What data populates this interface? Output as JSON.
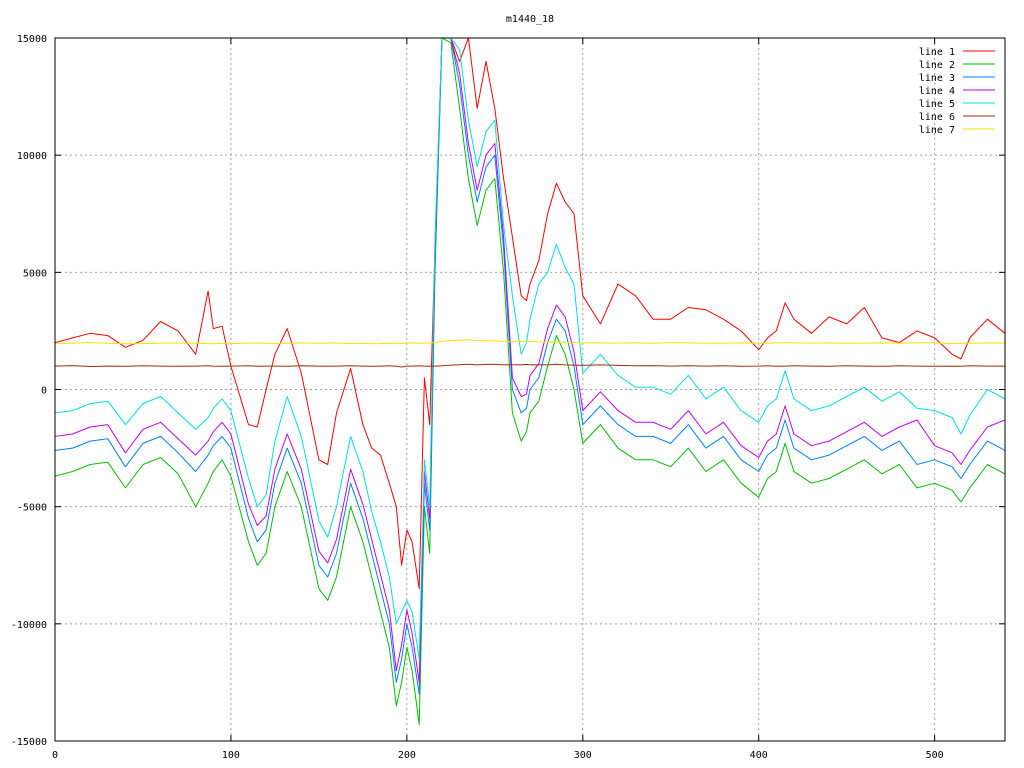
{
  "chart_data": {
    "type": "line",
    "title": "m1440_18",
    "xlabel": "",
    "ylabel": "",
    "xlim": [
      0,
      540
    ],
    "ylim": [
      -15000,
      15000
    ],
    "x_ticks": [
      0,
      100,
      200,
      300,
      400,
      500
    ],
    "y_ticks": [
      -15000,
      -10000,
      -5000,
      0,
      5000,
      10000,
      15000
    ],
    "x_tick_labels": [
      "0",
      "100",
      "200",
      "300",
      "400",
      "500"
    ],
    "y_tick_labels": [
      "-15000",
      "-10000",
      "-5000",
      "0",
      "5000",
      "10000",
      "15000"
    ],
    "grid": true,
    "legend_position": "top-right",
    "x": [
      0,
      10,
      20,
      30,
      40,
      50,
      60,
      70,
      80,
      87,
      90,
      95,
      100,
      110,
      115,
      120,
      125,
      132,
      140,
      150,
      155,
      160,
      168,
      175,
      180,
      185,
      190,
      194,
      197,
      200,
      203,
      207,
      210,
      213,
      216,
      220,
      225,
      230,
      235,
      240,
      245,
      250,
      255,
      260,
      265,
      268,
      270,
      275,
      280,
      285,
      290,
      295,
      300,
      310,
      320,
      330,
      340,
      350,
      360,
      370,
      380,
      390,
      400,
      405,
      410,
      415,
      420,
      430,
      440,
      450,
      460,
      470,
      480,
      490,
      500,
      510,
      515,
      520,
      530,
      540
    ],
    "series": [
      {
        "name": "line 1",
        "color": "#ff0000",
        "values": [
          2000,
          2200,
          2400,
          2300,
          1800,
          2100,
          2900,
          2500,
          1500,
          4200,
          2600,
          2700,
          1000,
          -1500,
          -1600,
          0,
          1500,
          2600,
          700,
          -3000,
          -3200,
          -1000,
          900,
          -1500,
          -2500,
          -2800,
          -4000,
          -5000,
          -7500,
          -6000,
          -6500,
          -8500,
          500,
          -1500,
          6000,
          15000,
          15000,
          14000,
          15000,
          12000,
          14000,
          12000,
          9000,
          6500,
          4000,
          3800,
          4500,
          5500,
          7500,
          8800,
          8000,
          7500,
          4000,
          2800,
          4500,
          4000,
          3000,
          3000,
          3500,
          3400,
          3000,
          2500,
          1700,
          2200,
          2500,
          3700,
          3000,
          2400,
          3100,
          2800,
          3500,
          2200,
          2000,
          2500,
          2200,
          1500,
          1300,
          2200,
          3000,
          2400
        ]
      },
      {
        "name": "line 2",
        "color": "#00c000",
        "values": [
          -3700,
          -3500,
          -3200,
          -3100,
          -4200,
          -3200,
          -2900,
          -3600,
          -5000,
          -4000,
          -3500,
          -3000,
          -3700,
          -6500,
          -7500,
          -7000,
          -5000,
          -3500,
          -5000,
          -8500,
          -9000,
          -8000,
          -5000,
          -6500,
          -8000,
          -9500,
          -11000,
          -13500,
          -12500,
          -11000,
          -12000,
          -14300,
          -5000,
          -7000,
          5000,
          15000,
          14800,
          12000,
          9000,
          7000,
          8500,
          9000,
          5000,
          -1000,
          -2200,
          -1800,
          -1000,
          -500,
          1000,
          2300,
          1500,
          0,
          -2300,
          -1500,
          -2500,
          -3000,
          -3000,
          -3300,
          -2500,
          -3500,
          -3000,
          -4000,
          -4600,
          -3800,
          -3500,
          -2300,
          -3500,
          -4000,
          -3800,
          -3400,
          -3000,
          -3600,
          -3200,
          -4200,
          -4000,
          -4300,
          -4800,
          -4200,
          -3200,
          -3600
        ]
      },
      {
        "name": "line 3",
        "color": "#0080ff",
        "values": [
          -2600,
          -2500,
          -2200,
          -2100,
          -3300,
          -2300,
          -2000,
          -2700,
          -3500,
          -2800,
          -2400,
          -2000,
          -2500,
          -5500,
          -6500,
          -6000,
          -4000,
          -2500,
          -4000,
          -7500,
          -8000,
          -7000,
          -4000,
          -5500,
          -7000,
          -8500,
          -10000,
          -12500,
          -11500,
          -10000,
          -11000,
          -13000,
          -4000,
          -6000,
          5500,
          15000,
          15000,
          13000,
          10000,
          8000,
          9500,
          10000,
          6000,
          0,
          -1000,
          -800,
          0,
          500,
          2000,
          3000,
          2500,
          1000,
          -1500,
          -700,
          -1500,
          -2000,
          -2000,
          -2300,
          -1500,
          -2500,
          -2000,
          -3000,
          -3500,
          -2800,
          -2500,
          -1300,
          -2500,
          -3000,
          -2800,
          -2400,
          -2000,
          -2600,
          -2200,
          -3200,
          -3000,
          -3300,
          -3800,
          -3200,
          -2200,
          -2600
        ]
      },
      {
        "name": "line 4",
        "color": "#c000ff",
        "values": [
          -2000,
          -1900,
          -1600,
          -1500,
          -2700,
          -1700,
          -1400,
          -2100,
          -2800,
          -2200,
          -1800,
          -1400,
          -1900,
          -4900,
          -5800,
          -5400,
          -3400,
          -1900,
          -3400,
          -6900,
          -7400,
          -6400,
          -3400,
          -4900,
          -6400,
          -7900,
          -9400,
          -12000,
          -10900,
          -9400,
          -10400,
          -12500,
          -3500,
          -5500,
          6000,
          15000,
          15000,
          13500,
          10500,
          8500,
          10000,
          10500,
          6500,
          500,
          -300,
          -200,
          600,
          1100,
          2600,
          3600,
          3100,
          1600,
          -900,
          -100,
          -900,
          -1400,
          -1400,
          -1700,
          -900,
          -1900,
          -1400,
          -2400,
          -2900,
          -2200,
          -1900,
          -700,
          -1900,
          -2400,
          -2200,
          -1800,
          -1400,
          -2000,
          -1600,
          -1300,
          -2400,
          -2700,
          -3200,
          -2600,
          -1600,
          -1300
        ]
      },
      {
        "name": "line 5",
        "color": "#00e0e0",
        "values": [
          -1000,
          -900,
          -600,
          -500,
          -1500,
          -600,
          -300,
          -1000,
          -1700,
          -1200,
          -800,
          -400,
          -900,
          -3800,
          -5000,
          -4500,
          -2200,
          -300,
          -2000,
          -5600,
          -6300,
          -5000,
          -2000,
          -3500,
          -5200,
          -6500,
          -8000,
          -10000,
          -9500,
          -9000,
          -9500,
          -11500,
          -3000,
          -5000,
          6500,
          15000,
          15000,
          14500,
          11500,
          9500,
          11000,
          11500,
          7000,
          4000,
          1500,
          2000,
          3000,
          4500,
          5000,
          6200,
          5200,
          4500,
          700,
          1500,
          600,
          100,
          100,
          -200,
          600,
          -400,
          100,
          -900,
          -1400,
          -700,
          -400,
          800,
          -400,
          -900,
          -700,
          -300,
          100,
          -500,
          -100,
          -800,
          -900,
          -1200,
          -1900,
          -1100,
          0,
          -400
        ]
      },
      {
        "name": "line 6",
        "color": "#a03000",
        "values": [
          1000,
          1020,
          980,
          1000,
          990,
          1010,
          1000,
          990,
          1000,
          1010,
          1000,
          990,
          1000,
          1010,
          990,
          1000,
          1000,
          990,
          1010,
          1000,
          990,
          1000,
          1010,
          1000,
          990,
          1000,
          1010,
          990,
          960,
          1000,
          1000,
          1010,
          1000,
          990,
          1000,
          1010,
          1040,
          1060,
          1080,
          1050,
          1070,
          1080,
          1050,
          1060,
          1050,
          1070,
          1050,
          1060,
          1050,
          1080,
          1050,
          1040,
          1030,
          1050,
          1030,
          1010,
          1020,
          1000,
          1010,
          1000,
          1010,
          990,
          1000,
          1010,
          990,
          1000,
          1010,
          1000,
          990,
          1010,
          1000,
          990,
          1010,
          1000,
          990,
          1000,
          990,
          1010,
          1000,
          1000
        ]
      },
      {
        "name": "line 7",
        "color": "#ffe000",
        "values": [
          1950,
          1980,
          2000,
          1970,
          1950,
          1960,
          1980,
          1990,
          1970,
          1960,
          1950,
          1970,
          1960,
          1980,
          1990,
          1970,
          1960,
          1980,
          1990,
          1970,
          1980,
          1990,
          1960,
          1970,
          1950,
          1960,
          1980,
          1970,
          1960,
          1980,
          1990,
          1970,
          1980,
          1990,
          2000,
          2050,
          2080,
          2100,
          2120,
          2090,
          2080,
          2070,
          2050,
          2040,
          2060,
          2030,
          2050,
          2040,
          2020,
          2040,
          2010,
          2000,
          1990,
          1990,
          1980,
          1990,
          1970,
          2000,
          1990,
          1980,
          1970,
          1990,
          1980,
          1970,
          1990,
          2000,
          1990,
          1980,
          1990,
          1970,
          1980,
          1990,
          1980,
          1990,
          1990,
          1960,
          1980,
          1970,
          1990,
          1980
        ]
      }
    ]
  }
}
